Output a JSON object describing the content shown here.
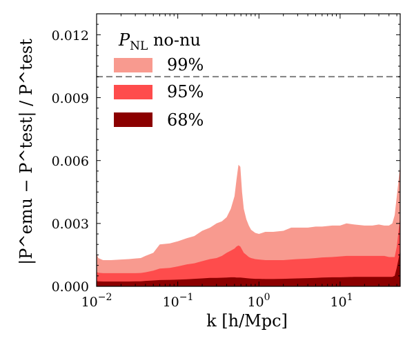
{
  "chart_data": {
    "type": "area",
    "title": "",
    "xlabel": "k [h/Mpc]",
    "ylabel": "|P^emu − P^test| / P^test",
    "xscale": "log",
    "xlim": [
      0.01,
      55
    ],
    "ylim": [
      0,
      0.013
    ],
    "yticks": [
      0.0,
      0.003,
      0.006,
      0.009,
      0.012
    ],
    "ytick_labels": [
      "0.000",
      "0.003",
      "0.006",
      "0.009",
      "0.012"
    ],
    "xticks": [
      0.01,
      0.1,
      1,
      10
    ],
    "xtick_labels": [
      {
        "base": "10",
        "exp": "−2"
      },
      {
        "base": "10",
        "exp": "−1"
      },
      {
        "base": "10",
        "exp": "0"
      },
      {
        "base": "10",
        "exp": "1"
      }
    ],
    "reference_line": {
      "y": 0.01,
      "style": "dashed",
      "color": "#808080"
    },
    "legend": {
      "title_main": "P",
      "title_sub": "NL",
      "title_rest": " no-nu",
      "placement": "upper-left"
    },
    "x": [
      0.01,
      0.0105,
      0.012,
      0.015,
      0.02,
      0.025,
      0.03,
      0.035,
      0.04,
      0.05,
      0.06,
      0.08,
      0.1,
      0.13,
      0.16,
      0.2,
      0.25,
      0.3,
      0.35,
      0.4,
      0.45,
      0.5,
      0.53,
      0.56,
      0.59,
      0.62,
      0.65,
      0.7,
      0.75,
      0.8,
      0.9,
      1.0,
      1.2,
      1.5,
      2.0,
      2.5,
      3,
      4,
      5,
      6,
      8,
      10,
      12,
      15,
      20,
      25,
      30,
      35,
      40,
      44,
      47,
      50,
      53,
      55
    ],
    "series": [
      {
        "name": "99%",
        "color": "#f89a8f",
        "values": [
          0.00155,
          0.00135,
          0.00125,
          0.00125,
          0.00128,
          0.0013,
          0.00133,
          0.00135,
          0.00145,
          0.0016,
          0.002,
          0.00205,
          0.00215,
          0.0023,
          0.0024,
          0.00265,
          0.0028,
          0.003,
          0.0031,
          0.0033,
          0.0037,
          0.0043,
          0.0051,
          0.0058,
          0.0057,
          0.0045,
          0.0037,
          0.0032,
          0.0029,
          0.0027,
          0.00255,
          0.0025,
          0.0026,
          0.0026,
          0.00265,
          0.0028,
          0.0028,
          0.0028,
          0.00285,
          0.00285,
          0.0029,
          0.0029,
          0.003,
          0.00295,
          0.0029,
          0.0029,
          0.00295,
          0.0029,
          0.0029,
          0.003,
          0.0034,
          0.0043,
          0.0052,
          0.0058
        ]
      },
      {
        "name": "95%",
        "color": "#fe4c4c",
        "values": [
          0.00068,
          0.00065,
          0.00063,
          0.00063,
          0.00063,
          0.00063,
          0.00063,
          0.00064,
          0.00067,
          0.00075,
          0.00085,
          0.00088,
          0.00095,
          0.00105,
          0.0011,
          0.0012,
          0.0013,
          0.00135,
          0.00145,
          0.0016,
          0.0017,
          0.0018,
          0.0019,
          0.00195,
          0.0019,
          0.00175,
          0.0016,
          0.0015,
          0.0014,
          0.00135,
          0.0013,
          0.00128,
          0.00125,
          0.00125,
          0.00125,
          0.00128,
          0.0013,
          0.00132,
          0.00135,
          0.00138,
          0.0014,
          0.00143,
          0.00145,
          0.00145,
          0.00145,
          0.00145,
          0.00145,
          0.00145,
          0.0014,
          0.0014,
          0.0014,
          0.0019,
          0.0028,
          0.0033
        ]
      },
      {
        "name": "68%",
        "color": "#8b0000",
        "values": [
          0.00025,
          0.00024,
          0.00023,
          0.00023,
          0.00023,
          0.00023,
          0.00024,
          0.00024,
          0.00026,
          0.00028,
          0.0003,
          0.00031,
          0.00032,
          0.00034,
          0.00036,
          0.00038,
          0.0004,
          0.0004,
          0.00041,
          0.00042,
          0.00043,
          0.00043,
          0.00042,
          0.00042,
          0.00042,
          0.00041,
          0.0004,
          0.00039,
          0.00038,
          0.00037,
          0.00036,
          0.00036,
          0.00035,
          0.00035,
          0.00036,
          0.00037,
          0.00038,
          0.00039,
          0.0004,
          0.00042,
          0.00043,
          0.00043,
          0.00044,
          0.00045,
          0.00045,
          0.00045,
          0.00045,
          0.00045,
          0.00045,
          0.00045,
          0.0005,
          0.0009,
          0.0014,
          0.0017
        ]
      }
    ]
  }
}
